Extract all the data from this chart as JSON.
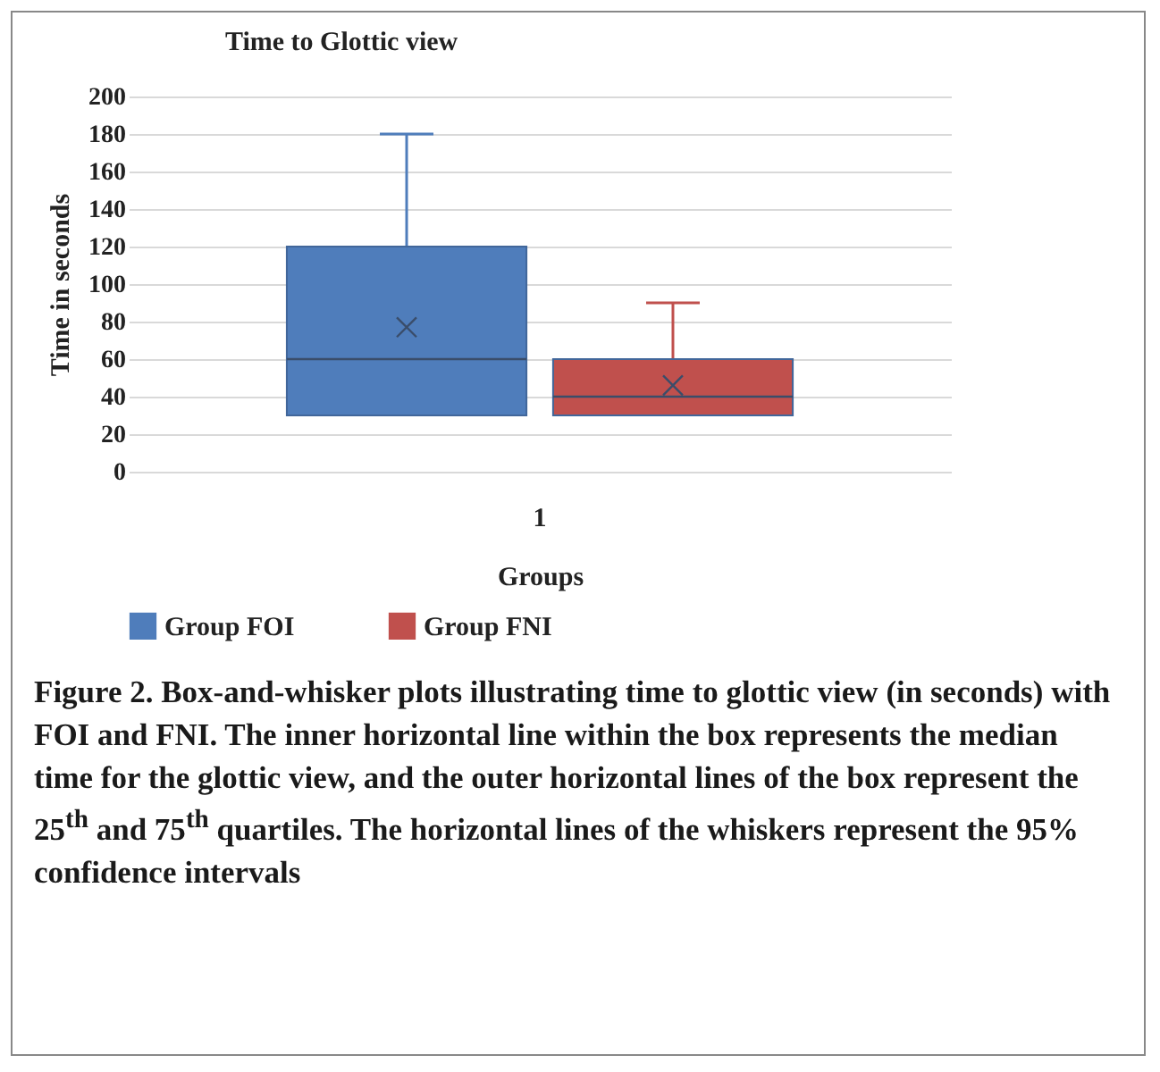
{
  "chart_data": {
    "type": "box",
    "title": "Time to Glottic view",
    "xlabel": "Groups",
    "ylabel": "Time in seconds",
    "categories": [
      "1"
    ],
    "series": [
      {
        "name": "Group FOI",
        "color": "#4f7dbb",
        "boxes": [
          {
            "low": 30,
            "q1": 30,
            "median": 60,
            "q3": 120,
            "high": 180,
            "mean": 77
          }
        ]
      },
      {
        "name": "Group FNI",
        "color": "#c0504d",
        "boxes": [
          {
            "low": 30,
            "q1": 30,
            "median": 40,
            "q3": 60,
            "high": 90,
            "mean": 46
          }
        ]
      }
    ],
    "ylim": [
      0,
      200
    ],
    "yticks": [
      0,
      20,
      40,
      60,
      80,
      100,
      120,
      140,
      160,
      180,
      200
    ],
    "grid": "y",
    "legend": "bottom",
    "annotations": [
      "Figure 2. Box-and-whisker plots illustrating time to glottic view (in seconds) with FOI and FNI. The inner horizontal line within the box represents the median time for the glottic view, and the outer horizontal lines of the box represent the 25$^{th}$ and 75$^{th}$ quartiles. The horizontal lines of the whiskers represent the 95% confidence intervals"
    ]
  }
}
